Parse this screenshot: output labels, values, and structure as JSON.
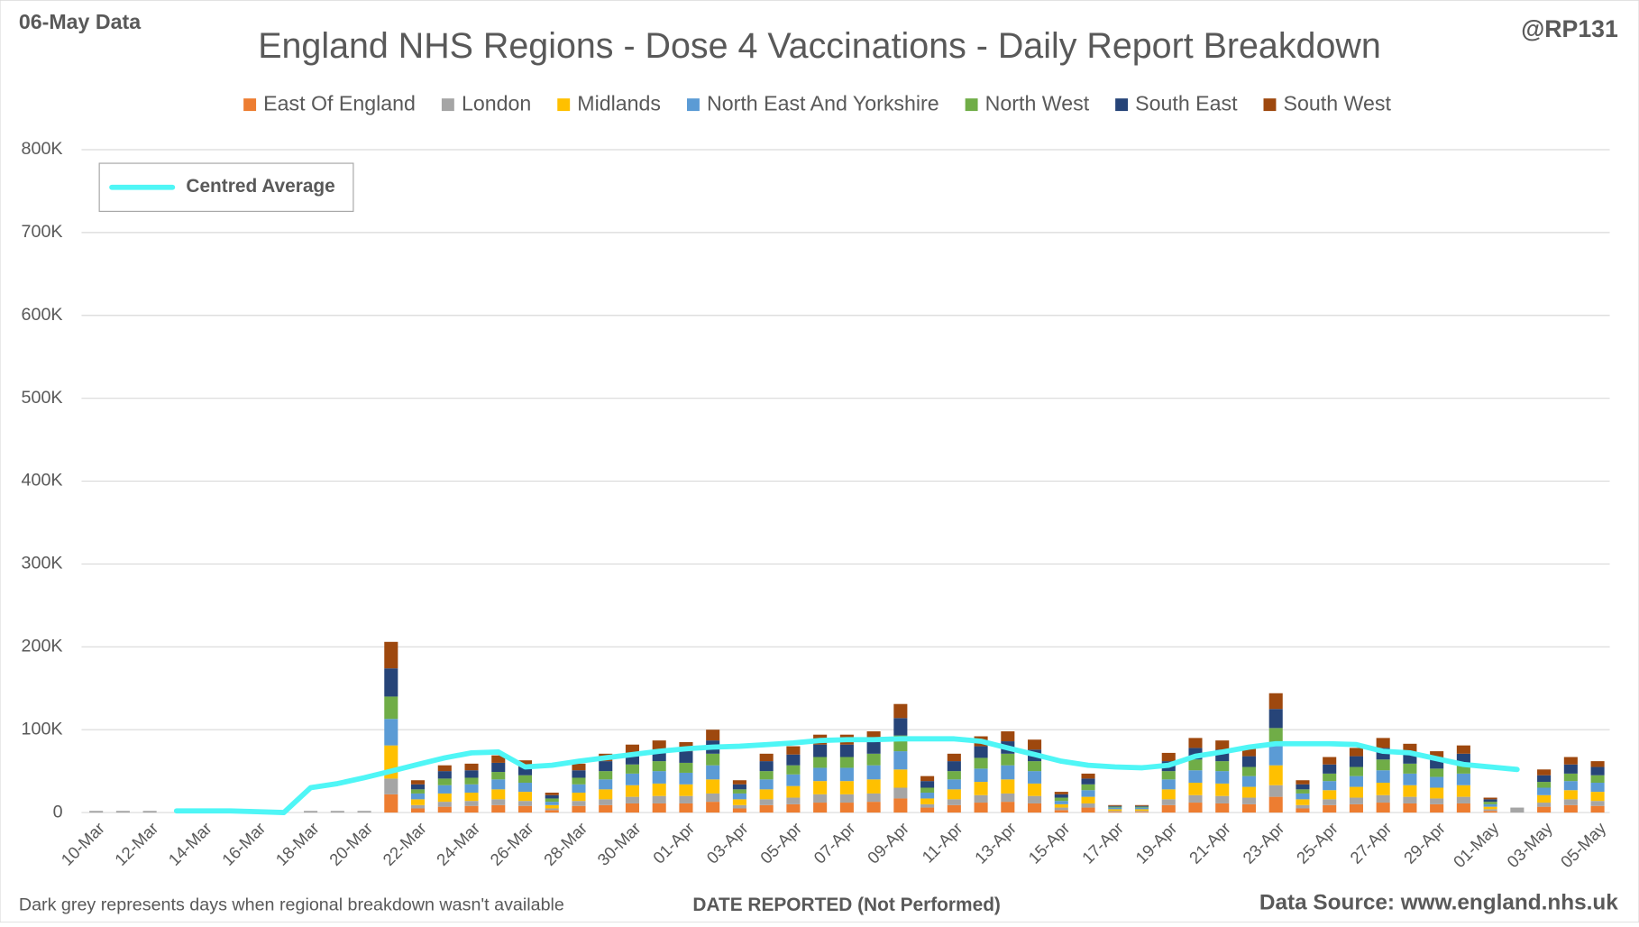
{
  "chart_data": {
    "type": "stacked-bar",
    "title": "England NHS Regions - Dose 4 Vaccinations - Daily Report Breakdown",
    "data_date": "06-May Data",
    "handle": "@RP131",
    "note": "Dark grey represents days when regional breakdown wasn't available",
    "x_label": "DATE REPORTED (Not Performed)",
    "source": "Data Source: www.england.nhs.uk",
    "categories": [
      "10-Mar",
      null,
      "12-Mar",
      null,
      "14-Mar",
      null,
      "16-Mar",
      null,
      "18-Mar",
      null,
      "20-Mar",
      null,
      "22-Mar",
      null,
      "24-Mar",
      null,
      "26-Mar",
      null,
      "28-Mar",
      null,
      "30-Mar",
      null,
      "01-Apr",
      null,
      "03-Apr",
      null,
      "05-Apr",
      null,
      "07-Apr",
      null,
      "09-Apr",
      null,
      "11-Apr",
      null,
      "13-Apr",
      null,
      "15-Apr",
      null,
      "17-Apr",
      null,
      "19-Apr",
      null,
      "21-Apr",
      null,
      "23-Apr",
      null,
      "25-Apr",
      null,
      "27-Apr",
      null,
      "29-Apr",
      null,
      "01-May",
      null,
      "03-May",
      null,
      "05-May"
    ],
    "series": [
      {
        "name": "East Of England",
        "color": "#ed7d31",
        "values": [
          0,
          0,
          0,
          0,
          0,
          0,
          0,
          0,
          0,
          0,
          0,
          22000,
          5000,
          7000,
          8000,
          9000,
          8000,
          3000,
          8000,
          9000,
          11000,
          11000,
          11000,
          13000,
          5000,
          9000,
          10000,
          12000,
          12000,
          13000,
          17000,
          6000,
          9000,
          12000,
          13000,
          11000,
          3000,
          6000,
          1000,
          1000,
          9000,
          12000,
          11000,
          10000,
          19000,
          5000,
          9000,
          10000,
          12000,
          11000,
          10000,
          11000,
          2000,
          0,
          7000,
          9000,
          8000
        ]
      },
      {
        "name": "London",
        "color": "#a5a5a5",
        "values": [
          2000,
          2000,
          2000,
          0,
          0,
          0,
          0,
          0,
          2000,
          2000,
          2000,
          19000,
          4000,
          6000,
          6000,
          7000,
          6000,
          2000,
          6000,
          7000,
          8000,
          9000,
          9000,
          10000,
          4000,
          7000,
          8000,
          10000,
          10000,
          10000,
          13000,
          4000,
          7000,
          9000,
          10000,
          9000,
          3000,
          5000,
          1000,
          1000,
          7000,
          9000,
          9000,
          8000,
          14000,
          4000,
          7000,
          8000,
          9000,
          8000,
          7000,
          8000,
          2000,
          6000,
          5000,
          7000,
          6000
        ]
      },
      {
        "name": "Midlands",
        "color": "#ffc000",
        "values": [
          0,
          0,
          0,
          0,
          0,
          0,
          0,
          0,
          0,
          0,
          0,
          40000,
          7000,
          10000,
          10000,
          12000,
          11000,
          4000,
          10000,
          12000,
          14000,
          15000,
          14000,
          17000,
          7000,
          12000,
          14000,
          16000,
          16000,
          17000,
          22000,
          7000,
          12000,
          16000,
          17000,
          15000,
          4000,
          8000,
          2000,
          2000,
          12000,
          15000,
          15000,
          13000,
          24000,
          7000,
          11000,
          13000,
          15000,
          14000,
          13000,
          14000,
          3000,
          0,
          9000,
          11000,
          11000
        ]
      },
      {
        "name": "North East And Yorkshire",
        "color": "#5b9bd5",
        "values": [
          0,
          0,
          0,
          0,
          0,
          0,
          0,
          0,
          0,
          0,
          0,
          32000,
          7000,
          10000,
          10000,
          12000,
          11000,
          4000,
          10000,
          12000,
          14000,
          15000,
          14000,
          17000,
          7000,
          12000,
          14000,
          16000,
          16000,
          17000,
          22000,
          7000,
          12000,
          16000,
          17000,
          15000,
          4000,
          8000,
          2000,
          2000,
          12000,
          15000,
          15000,
          13000,
          25000,
          7000,
          11000,
          13000,
          15000,
          14000,
          13000,
          14000,
          3000,
          0,
          9000,
          11000,
          11000
        ]
      },
      {
        "name": "North West",
        "color": "#70ad47",
        "values": [
          0,
          0,
          0,
          0,
          0,
          0,
          0,
          0,
          0,
          0,
          0,
          27000,
          5000,
          8000,
          8000,
          9000,
          9000,
          4000,
          8000,
          10000,
          11000,
          12000,
          12000,
          14000,
          5000,
          10000,
          11000,
          13000,
          13000,
          14000,
          19000,
          6000,
          10000,
          13000,
          14000,
          12000,
          4000,
          7000,
          1000,
          1000,
          10000,
          13000,
          12000,
          11000,
          20000,
          5000,
          9000,
          11000,
          13000,
          12000,
          10000,
          11000,
          3000,
          0,
          7000,
          9000,
          9000
        ]
      },
      {
        "name": "South East",
        "color": "#264478",
        "values": [
          0,
          0,
          0,
          0,
          0,
          0,
          0,
          0,
          0,
          0,
          0,
          34000,
          6000,
          9000,
          9000,
          11000,
          10000,
          4000,
          9000,
          12000,
          13000,
          14000,
          14000,
          16000,
          6000,
          12000,
          13000,
          15000,
          15000,
          15000,
          21000,
          8000,
          12000,
          14000,
          15000,
          14000,
          4000,
          7000,
          1000,
          1000,
          12000,
          14000,
          14000,
          13000,
          23000,
          6000,
          11000,
          13000,
          14000,
          13000,
          12000,
          13000,
          3000,
          0,
          8000,
          11000,
          10000
        ]
      },
      {
        "name": "South West",
        "color": "#9e480e",
        "values": [
          0,
          0,
          0,
          0,
          0,
          0,
          0,
          0,
          0,
          0,
          0,
          32000,
          5000,
          7000,
          8000,
          9000,
          8000,
          3000,
          8000,
          9000,
          11000,
          11000,
          11000,
          13000,
          5000,
          9000,
          10000,
          12000,
          12000,
          12000,
          17000,
          6000,
          9000,
          12000,
          12000,
          12000,
          3000,
          6000,
          1000,
          1000,
          10000,
          12000,
          11000,
          10000,
          19000,
          5000,
          9000,
          10000,
          12000,
          11000,
          9000,
          10000,
          2000,
          0,
          7000,
          9000,
          7000
        ]
      }
    ],
    "line": {
      "name": "Centred Average",
      "color": "#4ff6f6",
      "values": [
        null,
        null,
        null,
        2000,
        2000,
        2000,
        1000,
        0,
        30000,
        35000,
        42000,
        50000,
        58000,
        66000,
        72000,
        73000,
        55000,
        57000,
        62000,
        66000,
        70000,
        74000,
        77000,
        79000,
        80000,
        82000,
        84000,
        87000,
        88000,
        88000,
        89000,
        89000,
        89000,
        86000,
        78000,
        70000,
        62000,
        57000,
        55000,
        54000,
        57000,
        68000,
        73000,
        79000,
        83000,
        83000,
        83000,
        82000,
        74000,
        72000,
        65000,
        58000,
        55000,
        52000,
        null,
        null,
        null
      ]
    },
    "ylim": [
      0,
      800000
    ],
    "yticks": [
      0,
      {
        "value": 100000,
        "label": "100K"
      },
      {
        "value": 200000,
        "label": "200K"
      },
      {
        "value": 300000,
        "label": "300K"
      },
      {
        "value": 400000,
        "label": "400K"
      },
      {
        "value": 500000,
        "label": "500K"
      },
      {
        "value": 600000,
        "label": "600K"
      },
      {
        "value": 700000,
        "label": "700K"
      },
      {
        "value": 800000,
        "label": "800K"
      }
    ],
    "grid": true
  }
}
